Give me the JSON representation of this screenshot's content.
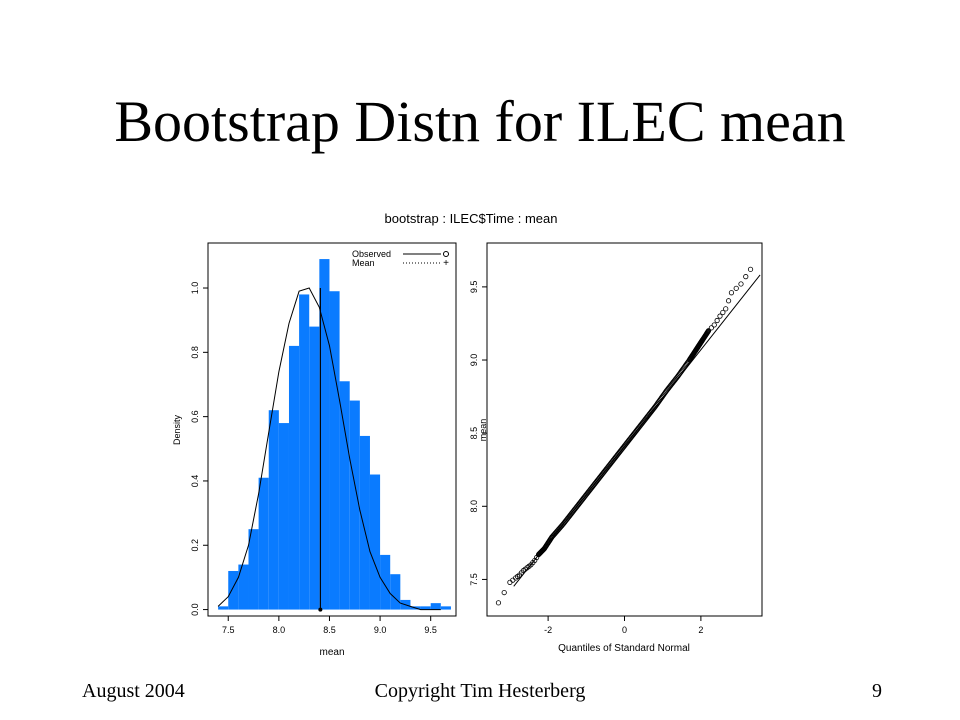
{
  "slide": {
    "title": "Bootstrap Distn for ILEC mean",
    "footer_left": "August 2004",
    "footer_center": "Copyright Tim Hesterberg",
    "footer_right": "9"
  },
  "figure_title": "bootstrap : ILEC$Time : mean",
  "colors": {
    "bar_fill": "#0a7bff",
    "line": "#000000"
  },
  "chart_data": [
    {
      "type": "bar",
      "subtype": "histogram",
      "title": "",
      "xlabel": "mean",
      "ylabel": "Density",
      "xlim": [
        7.3,
        9.75
      ],
      "ylim": [
        -0.02,
        1.14
      ],
      "xticks": [
        "7.5",
        "8.0",
        "8.5",
        "9.0",
        "9.5"
      ],
      "yticks": [
        "0.0",
        "0.2",
        "0.4",
        "0.6",
        "0.8",
        "1.0"
      ],
      "bins": [
        {
          "x0": 7.4,
          "x1": 7.5,
          "density": 0.01
        },
        {
          "x0": 7.5,
          "x1": 7.6,
          "density": 0.12
        },
        {
          "x0": 7.6,
          "x1": 7.7,
          "density": 0.14
        },
        {
          "x0": 7.7,
          "x1": 7.8,
          "density": 0.25
        },
        {
          "x0": 7.8,
          "x1": 7.9,
          "density": 0.41
        },
        {
          "x0": 7.9,
          "x1": 8.0,
          "density": 0.62
        },
        {
          "x0": 8.0,
          "x1": 8.1,
          "density": 0.58
        },
        {
          "x0": 8.1,
          "x1": 8.2,
          "density": 0.82
        },
        {
          "x0": 8.2,
          "x1": 8.3,
          "density": 0.98
        },
        {
          "x0": 8.3,
          "x1": 8.4,
          "density": 0.88
        },
        {
          "x0": 8.4,
          "x1": 8.5,
          "density": 1.09
        },
        {
          "x0": 8.5,
          "x1": 8.6,
          "density": 0.99
        },
        {
          "x0": 8.6,
          "x1": 8.7,
          "density": 0.71
        },
        {
          "x0": 8.7,
          "x1": 8.8,
          "density": 0.65
        },
        {
          "x0": 8.8,
          "x1": 8.9,
          "density": 0.54
        },
        {
          "x0": 8.9,
          "x1": 9.0,
          "density": 0.42
        },
        {
          "x0": 9.0,
          "x1": 9.1,
          "density": 0.17
        },
        {
          "x0": 9.1,
          "x1": 9.2,
          "density": 0.11
        },
        {
          "x0": 9.2,
          "x1": 9.3,
          "density": 0.03
        },
        {
          "x0": 9.3,
          "x1": 9.4,
          "density": 0.01
        },
        {
          "x0": 9.4,
          "x1": 9.5,
          "density": 0.01
        },
        {
          "x0": 9.5,
          "x1": 9.6,
          "density": 0.02
        },
        {
          "x0": 9.6,
          "x1": 9.7,
          "density": 0.01
        }
      ],
      "density_curve": {
        "x": [
          7.4,
          7.5,
          7.6,
          7.7,
          7.8,
          7.9,
          8.0,
          8.1,
          8.2,
          8.3,
          8.4,
          8.5,
          8.6,
          8.7,
          8.8,
          8.9,
          9.0,
          9.1,
          9.2,
          9.3,
          9.4,
          9.5,
          9.6
        ],
        "y": [
          0.01,
          0.04,
          0.1,
          0.2,
          0.36,
          0.55,
          0.74,
          0.89,
          0.99,
          1.0,
          0.94,
          0.82,
          0.65,
          0.47,
          0.31,
          0.18,
          0.1,
          0.05,
          0.02,
          0.01,
          0.0,
          0.0,
          0.0
        ]
      },
      "observed": 8.41,
      "mean": 8.41,
      "legend": {
        "position": "top-right",
        "entries": [
          {
            "label": "Observed",
            "line": "solid",
            "marker": "o"
          },
          {
            "label": "Mean",
            "line": "dotted",
            "marker": "+"
          }
        ]
      }
    },
    {
      "type": "scatter",
      "subtype": "qq-plot",
      "title": "",
      "xlabel": "Quantiles of Standard Normal",
      "ylabel": "mean",
      "xlim": [
        -3.6,
        3.6
      ],
      "ylim": [
        7.25,
        9.8
      ],
      "xticks": [
        "-2",
        "0",
        "2"
      ],
      "yticks": [
        "7.5",
        "8.0",
        "8.5",
        "9.0",
        "9.5"
      ],
      "reference_line": {
        "intercept": 8.41,
        "slope": 0.33
      },
      "points": {
        "x": [
          -3.3,
          -3.0,
          -2.85,
          -2.75,
          -2.65,
          -2.55,
          -2.45,
          -2.35,
          -2.25,
          -2.1,
          -1.9,
          -1.6,
          -1.3,
          -1.0,
          -0.7,
          -0.4,
          -0.1,
          0.2,
          0.5,
          0.8,
          1.1,
          1.4,
          1.7,
          1.85,
          1.95,
          2.05,
          2.2,
          2.35,
          2.5,
          2.65,
          2.8,
          3.05,
          3.3
        ],
        "y": [
          7.34,
          7.48,
          7.51,
          7.53,
          7.56,
          7.58,
          7.6,
          7.63,
          7.67,
          7.71,
          7.79,
          7.88,
          7.98,
          8.08,
          8.18,
          8.28,
          8.38,
          8.48,
          8.58,
          8.68,
          8.79,
          8.89,
          9.0,
          9.06,
          9.1,
          9.14,
          9.2,
          9.24,
          9.3,
          9.35,
          9.46,
          9.52,
          9.62
        ]
      }
    }
  ]
}
